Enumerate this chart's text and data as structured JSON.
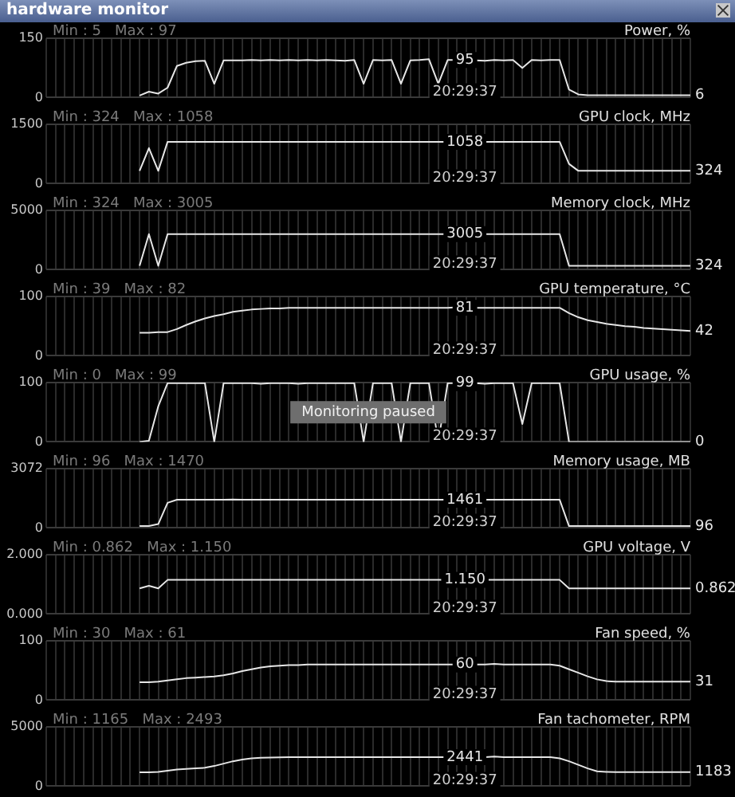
{
  "chart_data": [
    {
      "type": "line",
      "title": "hardware monitor",
      "ylabel": "Power, %",
      "categories": [
        null,
        null,
        null,
        null,
        null,
        null,
        null,
        null,
        null,
        null,
        null,
        null,
        null,
        null,
        null,
        null,
        null,
        null,
        null,
        null,
        null,
        null,
        null,
        null,
        null,
        null,
        null,
        null,
        null,
        null,
        null,
        null,
        null,
        null,
        null,
        null,
        null,
        null,
        null,
        null,
        null,
        null,
        null,
        null,
        null,
        null,
        null,
        null,
        null,
        null,
        null,
        null,
        null,
        null,
        null,
        null,
        null,
        null,
        null,
        null,
        null,
        null,
        null,
        null,
        null,
        null,
        null,
        null,
        null,
        null
      ],
      "color": "#e6e6e6",
      "values": [
        null,
        null,
        null,
        null,
        null,
        null,
        null,
        null,
        null,
        null,
        5,
        15,
        10,
        25,
        80,
        88,
        92,
        93,
        35,
        94,
        94,
        94,
        95,
        94,
        95,
        94,
        95,
        94,
        95,
        94,
        95,
        94,
        93,
        95,
        35,
        95,
        94,
        95,
        35,
        94,
        95,
        97,
        35,
        95,
        95,
        95,
        94,
        93,
        95,
        94,
        95,
        75,
        95,
        94,
        95,
        95,
        20,
        8,
        6,
        6,
        6,
        6,
        6,
        6,
        6,
        6,
        6,
        6,
        6,
        6
      ],
      "ylim": [
        0,
        150
      ],
      "yticks": [
        0,
        150
      ],
      "grid": true,
      "tick_labels": "y",
      "annotations": [
        "Min : 5   Max : 97",
        {
          "text": "95",
          "y": 95
        },
        "20:29:37",
        "6"
      ]
    },
    {
      "type": "line",
      "ylabel": "GPU clock, MHz",
      "categories": [
        null,
        null,
        null,
        null,
        null,
        null,
        null,
        null,
        null,
        null,
        null,
        null,
        null,
        null,
        null,
        null,
        null,
        null,
        null,
        null,
        null,
        null,
        null,
        null,
        null,
        null,
        null,
        null,
        null,
        null,
        null,
        null,
        null,
        null,
        null,
        null,
        null,
        null,
        null,
        null,
        null,
        null,
        null,
        null,
        null,
        null,
        null,
        null,
        null,
        null,
        null,
        null,
        null,
        null,
        null,
        null,
        null,
        null,
        null,
        null,
        null,
        null,
        null,
        null,
        null,
        null,
        null,
        null,
        null,
        null
      ],
      "color": "#e6e6e6",
      "values": [
        null,
        null,
        null,
        null,
        null,
        null,
        null,
        null,
        null,
        null,
        324,
        900,
        324,
        1058,
        1058,
        1058,
        1058,
        1058,
        1058,
        1058,
        1058,
        1058,
        1058,
        1058,
        1058,
        1058,
        1058,
        1058,
        1058,
        1058,
        1058,
        1058,
        1058,
        1058,
        1058,
        1058,
        1058,
        1058,
        1058,
        1058,
        1058,
        1058,
        1058,
        1058,
        1058,
        1058,
        1058,
        1058,
        1058,
        1058,
        1058,
        1058,
        1058,
        1058,
        1058,
        1058,
        500,
        324,
        324,
        324,
        324,
        324,
        324,
        324,
        324,
        324,
        324,
        324,
        324,
        324
      ],
      "ylim": [
        0,
        1500
      ],
      "yticks": [
        0,
        1500
      ],
      "grid": true,
      "tick_labels": "y",
      "annotations": [
        "Min : 324   Max : 1058",
        {
          "text": "1058",
          "y": 1058
        },
        "20:29:37",
        "324"
      ]
    },
    {
      "type": "line",
      "ylabel": "Memory clock, MHz",
      "categories": [
        null,
        null,
        null,
        null,
        null,
        null,
        null,
        null,
        null,
        null,
        null,
        null,
        null,
        null,
        null,
        null,
        null,
        null,
        null,
        null,
        null,
        null,
        null,
        null,
        null,
        null,
        null,
        null,
        null,
        null,
        null,
        null,
        null,
        null,
        null,
        null,
        null,
        null,
        null,
        null,
        null,
        null,
        null,
        null,
        null,
        null,
        null,
        null,
        null,
        null,
        null,
        null,
        null,
        null,
        null,
        null,
        null,
        null,
        null,
        null,
        null,
        null,
        null,
        null,
        null,
        null,
        null,
        null,
        null,
        null
      ],
      "color": "#e6e6e6",
      "values": [
        null,
        null,
        null,
        null,
        null,
        null,
        null,
        null,
        null,
        null,
        324,
        3005,
        324,
        3005,
        3005,
        3005,
        3005,
        3005,
        3005,
        3005,
        3005,
        3005,
        3005,
        3005,
        3005,
        3005,
        3005,
        3005,
        3005,
        3005,
        3005,
        3005,
        3005,
        3005,
        3005,
        3005,
        3005,
        3005,
        3005,
        3005,
        3005,
        3005,
        3005,
        3005,
        3005,
        3005,
        3005,
        3005,
        3005,
        3005,
        3005,
        3005,
        3005,
        3005,
        3005,
        3005,
        324,
        324,
        324,
        324,
        324,
        324,
        324,
        324,
        324,
        324,
        324,
        324,
        324,
        324
      ],
      "ylim": [
        0,
        5000
      ],
      "yticks": [
        0,
        5000
      ],
      "grid": true,
      "tick_labels": "y",
      "annotations": [
        "Min : 324   Max : 3005",
        {
          "text": "3005",
          "y": 3005
        },
        "20:29:37",
        "324"
      ]
    },
    {
      "type": "line",
      "ylabel": "GPU temperature, °C",
      "categories": [
        null,
        null,
        null,
        null,
        null,
        null,
        null,
        null,
        null,
        null,
        null,
        null,
        null,
        null,
        null,
        null,
        null,
        null,
        null,
        null,
        null,
        null,
        null,
        null,
        null,
        null,
        null,
        null,
        null,
        null,
        null,
        null,
        null,
        null,
        null,
        null,
        null,
        null,
        null,
        null,
        null,
        null,
        null,
        null,
        null,
        null,
        null,
        null,
        null,
        null,
        null,
        null,
        null,
        null,
        null,
        null,
        null,
        null,
        null,
        null,
        null,
        null,
        null,
        null,
        null,
        null,
        null,
        null,
        null,
        null
      ],
      "color": "#e6e6e6",
      "values": [
        null,
        null,
        null,
        null,
        null,
        null,
        null,
        null,
        null,
        null,
        39,
        39,
        40,
        40,
        45,
        52,
        58,
        63,
        67,
        70,
        74,
        76,
        78,
        79,
        80,
        80,
        81,
        81,
        81,
        81,
        81,
        81,
        81,
        81,
        81,
        81,
        81,
        81,
        81,
        81,
        81,
        81,
        81,
        81,
        82,
        81,
        81,
        81,
        81,
        81,
        81,
        81,
        81,
        81,
        81,
        81,
        72,
        65,
        60,
        57,
        54,
        52,
        50,
        49,
        47,
        46,
        45,
        44,
        43,
        42
      ],
      "ylim": [
        0,
        100
      ],
      "yticks": [
        0,
        100
      ],
      "grid": true,
      "tick_labels": "y",
      "annotations": [
        "Min : 39   Max : 82",
        {
          "text": "81",
          "y": 81
        },
        "20:29:37",
        "42"
      ]
    },
    {
      "type": "line",
      "ylabel": "GPU usage, %",
      "categories": [
        null,
        null,
        null,
        null,
        null,
        null,
        null,
        null,
        null,
        null,
        null,
        null,
        null,
        null,
        null,
        null,
        null,
        null,
        null,
        null,
        null,
        null,
        null,
        null,
        null,
        null,
        null,
        null,
        null,
        null,
        null,
        null,
        null,
        null,
        null,
        null,
        null,
        null,
        null,
        null,
        null,
        null,
        null,
        null,
        null,
        null,
        null,
        null,
        null,
        null,
        null,
        null,
        null,
        null,
        null,
        null,
        null,
        null,
        null,
        null,
        null,
        null,
        null,
        null,
        null,
        null,
        null,
        null,
        null,
        null
      ],
      "color": "#e6e6e6",
      "values": [
        null,
        null,
        null,
        null,
        null,
        null,
        null,
        null,
        null,
        null,
        0,
        2,
        60,
        99,
        99,
        99,
        99,
        99,
        0,
        99,
        99,
        99,
        99,
        98,
        99,
        99,
        99,
        98,
        99,
        99,
        99,
        99,
        99,
        99,
        0,
        99,
        99,
        99,
        0,
        99,
        99,
        99,
        0,
        99,
        99,
        99,
        99,
        98,
        99,
        99,
        99,
        30,
        99,
        99,
        99,
        99,
        0,
        0,
        0,
        0,
        0,
        0,
        0,
        0,
        0,
        0,
        0,
        0,
        0,
        0
      ],
      "ylim": [
        0,
        100
      ],
      "yticks": [
        0,
        100
      ],
      "grid": true,
      "tick_labels": "y",
      "annotations": [
        "Min : 0   Max : 99",
        {
          "text": "99",
          "y": 99
        },
        "20:29:37",
        "0",
        "Monitoring paused"
      ]
    },
    {
      "type": "line",
      "ylabel": "Memory usage, MB",
      "categories": [
        null,
        null,
        null,
        null,
        null,
        null,
        null,
        null,
        null,
        null,
        null,
        null,
        null,
        null,
        null,
        null,
        null,
        null,
        null,
        null,
        null,
        null,
        null,
        null,
        null,
        null,
        null,
        null,
        null,
        null,
        null,
        null,
        null,
        null,
        null,
        null,
        null,
        null,
        null,
        null,
        null,
        null,
        null,
        null,
        null,
        null,
        null,
        null,
        null,
        null,
        null,
        null,
        null,
        null,
        null,
        null,
        null,
        null,
        null,
        null,
        null,
        null,
        null,
        null,
        null,
        null,
        null,
        null,
        null,
        null
      ],
      "color": "#e6e6e6",
      "values": [
        null,
        null,
        null,
        null,
        null,
        null,
        null,
        null,
        null,
        null,
        96,
        100,
        200,
        1300,
        1461,
        1461,
        1461,
        1461,
        1461,
        1461,
        1470,
        1461,
        1461,
        1461,
        1461,
        1461,
        1461,
        1461,
        1461,
        1461,
        1461,
        1461,
        1461,
        1461,
        1461,
        1461,
        1461,
        1461,
        1461,
        1461,
        1461,
        1461,
        1461,
        1461,
        1461,
        1461,
        1461,
        1461,
        1461,
        1461,
        1461,
        1461,
        1461,
        1461,
        1461,
        1461,
        96,
        96,
        96,
        96,
        96,
        96,
        96,
        96,
        96,
        96,
        96,
        96,
        96,
        96
      ],
      "ylim": [
        0,
        3072
      ],
      "yticks": [
        0,
        3072
      ],
      "grid": true,
      "tick_labels": "y",
      "annotations": [
        "Min : 96   Max : 1470",
        {
          "text": "1461",
          "y": 1461
        },
        "20:29:37",
        "96"
      ]
    },
    {
      "type": "line",
      "ylabel": "GPU voltage, V",
      "categories": [
        null,
        null,
        null,
        null,
        null,
        null,
        null,
        null,
        null,
        null,
        null,
        null,
        null,
        null,
        null,
        null,
        null,
        null,
        null,
        null,
        null,
        null,
        null,
        null,
        null,
        null,
        null,
        null,
        null,
        null,
        null,
        null,
        null,
        null,
        null,
        null,
        null,
        null,
        null,
        null,
        null,
        null,
        null,
        null,
        null,
        null,
        null,
        null,
        null,
        null,
        null,
        null,
        null,
        null,
        null,
        null,
        null,
        null,
        null,
        null,
        null,
        null,
        null,
        null,
        null,
        null,
        null,
        null,
        null,
        null
      ],
      "color": "#e6e6e6",
      "values": [
        null,
        null,
        null,
        null,
        null,
        null,
        null,
        null,
        null,
        null,
        0.862,
        0.95,
        0.862,
        1.15,
        1.15,
        1.15,
        1.15,
        1.15,
        1.15,
        1.15,
        1.15,
        1.15,
        1.15,
        1.15,
        1.15,
        1.15,
        1.15,
        1.15,
        1.15,
        1.15,
        1.15,
        1.15,
        1.15,
        1.15,
        1.15,
        1.15,
        1.15,
        1.15,
        1.15,
        1.15,
        1.15,
        1.15,
        1.15,
        1.15,
        1.15,
        1.15,
        1.15,
        1.15,
        1.15,
        1.15,
        1.15,
        1.15,
        1.15,
        1.15,
        1.15,
        1.15,
        0.862,
        0.862,
        0.862,
        0.862,
        0.862,
        0.862,
        0.862,
        0.862,
        0.862,
        0.862,
        0.862,
        0.862,
        0.862,
        0.862
      ],
      "ylim": [
        0,
        2
      ],
      "yticks": [
        {
          "value": 0,
          "label": "0.000"
        },
        {
          "value": 2,
          "label": "2.000"
        }
      ],
      "grid": true,
      "tick_labels": "y",
      "annotations": [
        "Min : 0.862   Max : 1.150",
        {
          "text": "1.150",
          "y": 1.15
        },
        "20:29:37",
        "0.862"
      ]
    },
    {
      "type": "line",
      "ylabel": "Fan speed, %",
      "categories": [
        null,
        null,
        null,
        null,
        null,
        null,
        null,
        null,
        null,
        null,
        null,
        null,
        null,
        null,
        null,
        null,
        null,
        null,
        null,
        null,
        null,
        null,
        null,
        null,
        null,
        null,
        null,
        null,
        null,
        null,
        null,
        null,
        null,
        null,
        null,
        null,
        null,
        null,
        null,
        null,
        null,
        null,
        null,
        null,
        null,
        null,
        null,
        null,
        null,
        null,
        null,
        null,
        null,
        null,
        null,
        null,
        null,
        null,
        null,
        null,
        null,
        null,
        null,
        null,
        null,
        null,
        null,
        null,
        null,
        null
      ],
      "color": "#e6e6e6",
      "values": [
        null,
        null,
        null,
        null,
        null,
        null,
        null,
        null,
        null,
        null,
        30,
        30,
        31,
        33,
        35,
        37,
        38,
        39,
        40,
        42,
        45,
        49,
        52,
        55,
        57,
        58,
        59,
        59,
        60,
        60,
        60,
        60,
        60,
        60,
        60,
        60,
        60,
        60,
        60,
        60,
        60,
        60,
        60,
        60,
        60,
        60,
        60,
        60,
        61,
        60,
        60,
        60,
        60,
        60,
        60,
        58,
        52,
        46,
        40,
        35,
        32,
        31,
        31,
        31,
        31,
        31,
        31,
        31,
        31,
        31
      ],
      "ylim": [
        0,
        100
      ],
      "yticks": [
        0,
        100
      ],
      "grid": true,
      "tick_labels": "y",
      "annotations": [
        "Min : 30   Max : 61",
        {
          "text": "60",
          "y": 60
        },
        "20:29:37",
        "31"
      ]
    },
    {
      "type": "line",
      "ylabel": "Fan tachometer, RPM",
      "categories": [
        null,
        null,
        null,
        null,
        null,
        null,
        null,
        null,
        null,
        null,
        null,
        null,
        null,
        null,
        null,
        null,
        null,
        null,
        null,
        null,
        null,
        null,
        null,
        null,
        null,
        null,
        null,
        null,
        null,
        null,
        null,
        null,
        null,
        null,
        null,
        null,
        null,
        null,
        null,
        null,
        null,
        null,
        null,
        null,
        null,
        null,
        null,
        null,
        null,
        null,
        null,
        null,
        null,
        null,
        null,
        null,
        null,
        null,
        null,
        null,
        null,
        null,
        null,
        null,
        null,
        null,
        null,
        null,
        null,
        null
      ],
      "color": "#e6e6e6",
      "values": [
        null,
        null,
        null,
        null,
        null,
        null,
        null,
        null,
        null,
        null,
        1165,
        1170,
        1200,
        1300,
        1400,
        1450,
        1500,
        1550,
        1700,
        1900,
        2100,
        2250,
        2350,
        2400,
        2420,
        2430,
        2441,
        2441,
        2441,
        2441,
        2441,
        2441,
        2441,
        2441,
        2441,
        2441,
        2441,
        2441,
        2441,
        2441,
        2441,
        2441,
        2441,
        2441,
        2441,
        2441,
        2441,
        2441,
        2493,
        2441,
        2441,
        2441,
        2441,
        2441,
        2441,
        2350,
        2100,
        1800,
        1500,
        1250,
        1200,
        1190,
        1183,
        1183,
        1183,
        1183,
        1183,
        1183,
        1183,
        1183
      ],
      "ylim": [
        0,
        5000
      ],
      "yticks": [
        0,
        5000
      ],
      "grid": true,
      "tick_labels": "y",
      "annotations": [
        "Min : 1165   Max : 2493",
        {
          "text": "2441",
          "y": 2441
        },
        "20:29:37",
        "1183"
      ]
    }
  ]
}
